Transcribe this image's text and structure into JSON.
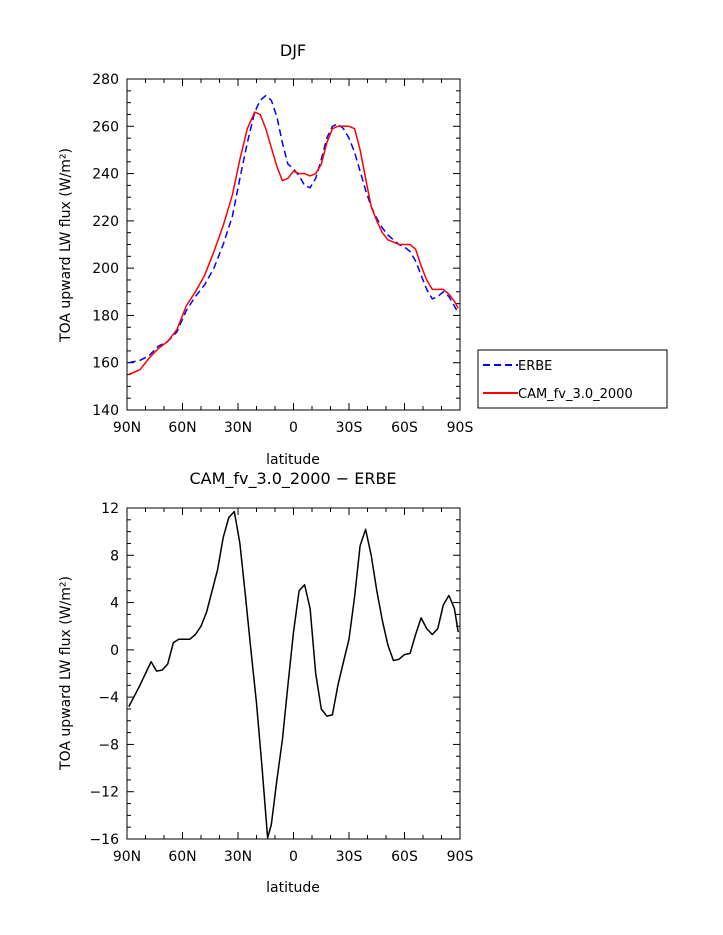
{
  "chart_data": [
    {
      "type": "line",
      "title": "DJF",
      "xlabel": "latitude",
      "ylabel": "TOA upward LW flux (W/m²)",
      "xlim": [
        -90,
        90
      ],
      "ylim": [
        140,
        280
      ],
      "x_ticks": [
        -90,
        -60,
        -30,
        0,
        30,
        60,
        90
      ],
      "x_tick_labels": [
        "90N",
        "60N",
        "30N",
        "0",
        "30S",
        "60S",
        "90S"
      ],
      "y_ticks": [
        140,
        160,
        180,
        200,
        220,
        240,
        260,
        280
      ],
      "y_tick_labels": [
        "140",
        "160",
        "180",
        "200",
        "220",
        "240",
        "260",
        "280"
      ],
      "grid": false,
      "legend": "outside-right",
      "series": [
        {
          "name": "ERBE",
          "color": "#0000ff",
          "dash": "dashed",
          "x": [
            -89,
            -83,
            -78,
            -73,
            -68,
            -63,
            -58,
            -53,
            -48,
            -43,
            -38,
            -33,
            -29,
            -25,
            -21,
            -18,
            -15,
            -12,
            -9,
            -6,
            -3,
            0,
            3,
            6,
            9,
            12,
            15,
            18,
            21,
            24,
            27,
            30,
            33,
            36,
            39,
            42,
            45,
            48,
            51,
            54,
            57,
            60,
            63,
            66,
            69,
            72,
            75,
            78,
            81,
            84,
            87,
            89
          ],
          "y": [
            160,
            161,
            163,
            167,
            169,
            173,
            182,
            188,
            193,
            200,
            210,
            222,
            238,
            253,
            266,
            271,
            273,
            271,
            264,
            253,
            244,
            242,
            239,
            235,
            234,
            238,
            246,
            255,
            260,
            261,
            259,
            255,
            249,
            241,
            233,
            226,
            221,
            217,
            214,
            212,
            210,
            209,
            207,
            203,
            197,
            191,
            187,
            188,
            190,
            188,
            184,
            181
          ]
        },
        {
          "name": "CAM_fv_3.0_2000",
          "color": "#ff0000",
          "dash": "solid",
          "x": [
            -89,
            -83,
            -78,
            -73,
            -68,
            -63,
            -58,
            -53,
            -48,
            -43,
            -38,
            -33,
            -29,
            -25,
            -21,
            -18,
            -15,
            -12,
            -9,
            -6,
            -3,
            0,
            3,
            6,
            9,
            12,
            15,
            18,
            21,
            24,
            27,
            30,
            33,
            36,
            39,
            42,
            45,
            48,
            51,
            54,
            57,
            60,
            63,
            66,
            69,
            72,
            75,
            78,
            81,
            84,
            87,
            89
          ],
          "y": [
            155,
            157,
            162,
            166,
            169,
            174,
            184,
            190,
            197,
            207,
            218,
            231,
            246,
            259,
            266,
            265,
            259,
            251,
            243,
            237,
            238,
            241,
            240,
            240,
            239,
            240,
            244,
            253,
            259,
            260,
            260,
            260,
            259,
            250,
            238,
            226,
            220,
            215,
            212,
            211,
            210,
            210,
            210,
            208,
            201,
            195,
            191,
            191,
            191,
            189,
            186,
            183
          ]
        }
      ]
    },
    {
      "type": "line",
      "title": "CAM_fv_3.0_2000 − ERBE",
      "xlabel": "latitude",
      "ylabel": "TOA upward LW flux (W/m²)",
      "xlim": [
        -90,
        90
      ],
      "ylim": [
        -16,
        12
      ],
      "x_ticks": [
        -90,
        -60,
        -30,
        0,
        30,
        60,
        90
      ],
      "x_tick_labels": [
        "90N",
        "60N",
        "30N",
        "0",
        "30S",
        "60S",
        "90S"
      ],
      "y_ticks": [
        -16,
        -12,
        -8,
        -4,
        0,
        4,
        8,
        12
      ],
      "y_tick_labels": [
        "−16",
        "−12",
        "−8",
        "−4",
        "0",
        "4",
        "8",
        "12"
      ],
      "grid": false,
      "series": [
        {
          "color": "#000000",
          "dash": "solid",
          "x": [
            -89,
            -86,
            -83,
            -80,
            -77,
            -74,
            -71,
            -68,
            -65,
            -62,
            -59,
            -56,
            -53,
            -50,
            -47,
            -44,
            -41,
            -38,
            -35,
            -32,
            -29,
            -26,
            -23,
            -20,
            -17,
            -14,
            -12,
            -9,
            -6,
            -3,
            0,
            3,
            6,
            9,
            12,
            15,
            18,
            21,
            24,
            27,
            30,
            33,
            36,
            39,
            42,
            45,
            48,
            51,
            54,
            57,
            60,
            63,
            66,
            69,
            72,
            75,
            78,
            81,
            84,
            87,
            89
          ],
          "y": [
            -4.8,
            -3.9,
            -3.0,
            -2.0,
            -1.0,
            -1.8,
            -1.7,
            -1.2,
            0.6,
            0.9,
            0.9,
            0.9,
            1.3,
            2.0,
            3.2,
            5.0,
            6.8,
            9.5,
            11.2,
            11.7,
            9.0,
            4.6,
            0.0,
            -4.5,
            -10.0,
            -15.9,
            -14.8,
            -11.0,
            -7.6,
            -3.0,
            1.5,
            5.0,
            5.5,
            3.5,
            -2.0,
            -5.0,
            -5.6,
            -5.5,
            -3.0,
            -1.0,
            0.9,
            4.5,
            8.8,
            10.2,
            8.0,
            5.0,
            2.5,
            0.4,
            -0.9,
            -0.8,
            -0.4,
            -0.3,
            1.3,
            2.7,
            1.8,
            1.3,
            1.8,
            3.8,
            4.6,
            3.5,
            1.5
          ]
        }
      ]
    }
  ]
}
